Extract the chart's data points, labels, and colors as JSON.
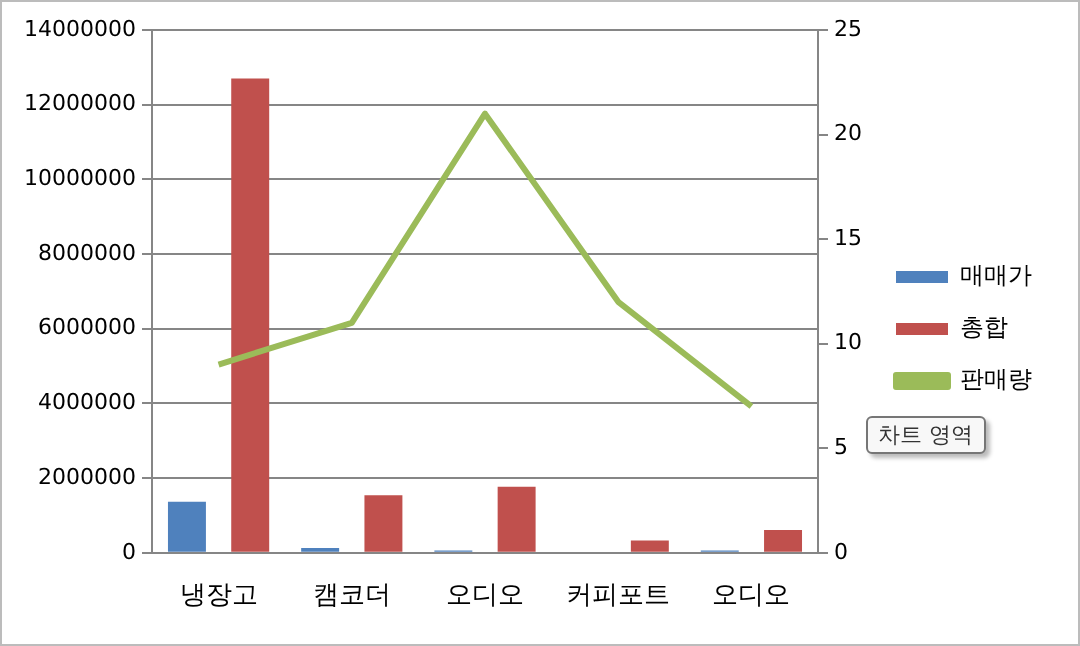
{
  "chart_data": {
    "type": "bar",
    "categories": [
      "냉장고",
      "캠코더",
      "오디오",
      "커피포트",
      "오디오"
    ],
    "series": [
      {
        "name": "매매가",
        "color": "#4f81bd",
        "values": [
          1370000,
          130000,
          60000,
          0,
          60000
        ]
      },
      {
        "name": "총합",
        "color": "#c0504d",
        "values": [
          12700000,
          1540000,
          1770000,
          330000,
          610000
        ]
      },
      {
        "name": "판매량",
        "type": "line",
        "axis": "y2",
        "color": "#9bbb59",
        "values": [
          9,
          11,
          21,
          12,
          7
        ]
      }
    ],
    "ylim": [
      0,
      14000000
    ],
    "yticks": [
      0,
      2000000,
      4000000,
      6000000,
      8000000,
      10000000,
      12000000,
      14000000
    ],
    "y2lim": [
      0,
      25
    ],
    "y2ticks": [
      0,
      5,
      10,
      15,
      20,
      25
    ],
    "grid": "y",
    "legend": "right",
    "annotations": [
      "차트 영역"
    ]
  }
}
